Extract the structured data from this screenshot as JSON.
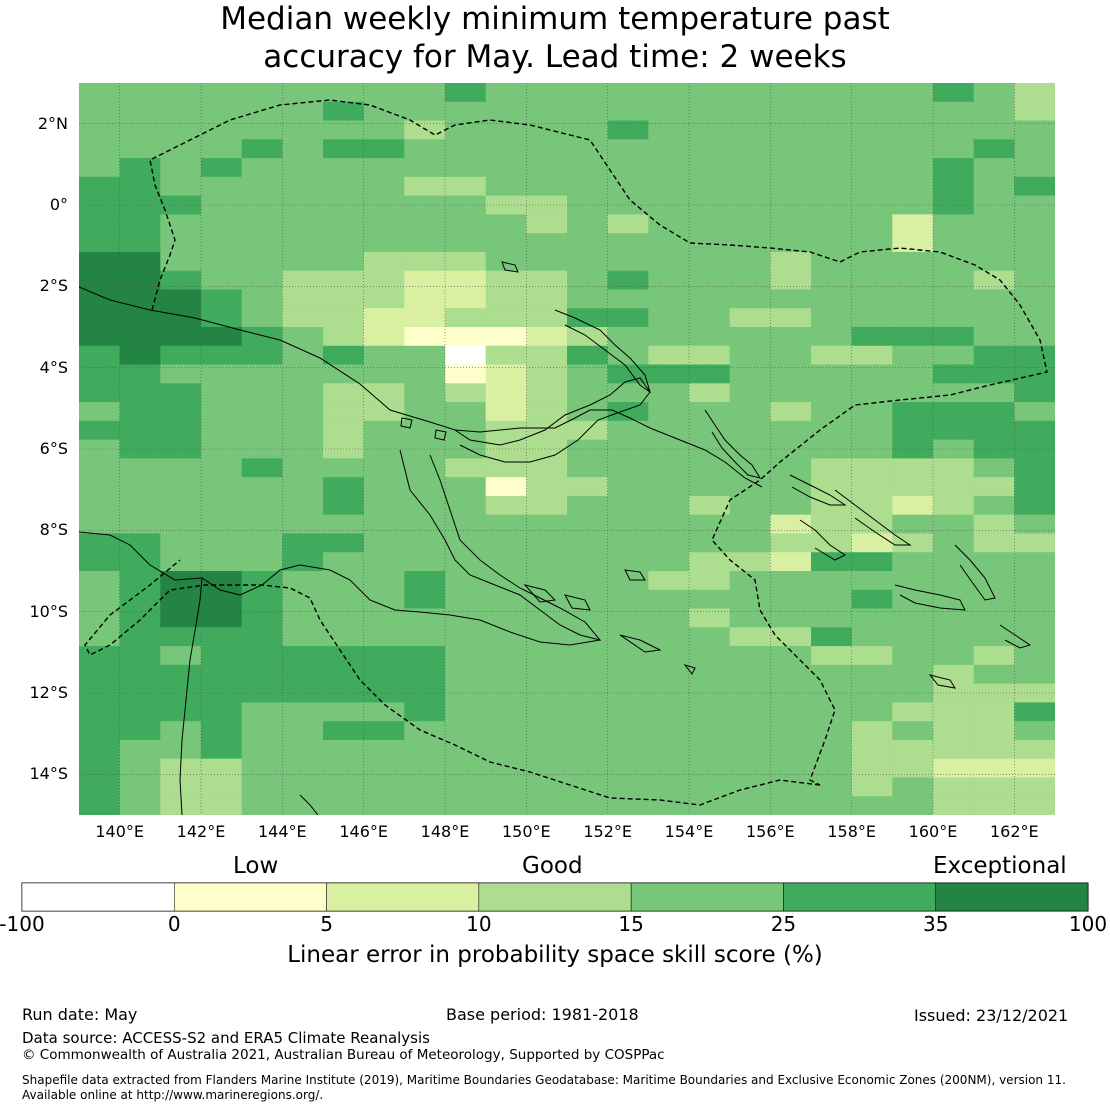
{
  "title": "Median weekly minimum temperature past accuracy for May. Lead time: 2 weeks",
  "title_lines": [
    "Median weekly minimum temperature past",
    "accuracy for May. Lead time: 2 weeks"
  ],
  "map": {
    "lon_range": [
      139,
      163
    ],
    "lat_range": [
      -15,
      3
    ],
    "lat_ticks": [
      {
        "value": 2,
        "label": "2°N"
      },
      {
        "value": 0,
        "label": "0°"
      },
      {
        "value": -2,
        "label": "2°S"
      },
      {
        "value": -4,
        "label": "4°S"
      },
      {
        "value": -6,
        "label": "6°S"
      },
      {
        "value": -8,
        "label": "8°S"
      },
      {
        "value": -10,
        "label": "10°S"
      },
      {
        "value": -12,
        "label": "12°S"
      },
      {
        "value": -14,
        "label": "14°S"
      }
    ],
    "lon_ticks": [
      {
        "value": 140,
        "label": "140°E"
      },
      {
        "value": 142,
        "label": "142°E"
      },
      {
        "value": 144,
        "label": "144°E"
      },
      {
        "value": 146,
        "label": "146°E"
      },
      {
        "value": 148,
        "label": "148°E"
      },
      {
        "value": 150,
        "label": "150°E"
      },
      {
        "value": 152,
        "label": "152°E"
      },
      {
        "value": 154,
        "label": "154°E"
      },
      {
        "value": 156,
        "label": "156°E"
      },
      {
        "value": 158,
        "label": "158°E"
      },
      {
        "value": 160,
        "label": "160°E"
      },
      {
        "value": 162,
        "label": "162°E"
      }
    ],
    "grid": "on",
    "colors": [
      "#ffffff",
      "#ffffcc",
      "#d9f0a3",
      "#addd8e",
      "#78c679",
      "#41ab5d",
      "#238443"
    ],
    "skill_rows": [
      "444444444544444444444543",
      "444444544444444444444443",
      "444444443444454444444444",
      "444454554444444444444454",
      "454544444444444444444544",
      "554444443344444444444545",
      "555444444433444444444544",
      "554444444443434444442444",
      "554444444444444444442444",
      "664444433344444443444444",
      "665443332233454443444434",
      "666543332233444444444444",
      "666543322333554433444444",
      "666654321112344444455544",
      "565554544033543344334455",
      "554444444123455544444555",
      "555444334323444344444445",
      "455444334423454443445554",
      "555444344433344444445555",
      "455444344433444444445455",
      "444454444333444444333345",
      "444444544413344444333335",
      "444444544433444344332345",
      "444444444444444442334434",
      "554445544444444443323433",
      "554445444444444332554444",
      "456654445444443344444444",
      "456654445444444444454444",
      "456654444444444344444444",
      "455554444444444433544444",
      "554555555444444444334434",
      "555555555444444444444344",
      "555555555444444444444333",
      "555544445444444444443335",
      "554544554444444444434334",
      "544544444444444444433333",
      "543344444444444444433222",
      "543344444444444444434333",
      "543344444444444444444333"
    ]
  },
  "colorbar": {
    "category_labels": [
      "Low",
      "Good",
      "Exceptional"
    ],
    "ticks": [
      "-100",
      "0",
      "5",
      "10",
      "15",
      "25",
      "35",
      "100"
    ],
    "colors": [
      "#ffffff",
      "#ffffcc",
      "#d9f0a3",
      "#addd8e",
      "#78c679",
      "#41ab5d",
      "#238443"
    ],
    "title": "Linear error in probability space skill score (%)"
  },
  "footer": {
    "run_date": "Run date: May",
    "base_period": "Base period: 1981-2018",
    "issued": "Issued: 23/12/2021",
    "data_source": "Data source: ACCESS-S2 and ERA5 Climate Reanalysis",
    "copyright": "© Commonwealth of Australia 2021, Australian Bureau of Meteorology, Supported by COSPPac",
    "shapefile_line1": "Shapefile data extracted from Flanders Marine Institute (2019), Maritime Boundaries Geodatabase: Maritime Boundaries and Exclusive Economic Zones (200NM), version 11.",
    "shapefile_line2": "Available online at http://www.marineregions.org/."
  }
}
